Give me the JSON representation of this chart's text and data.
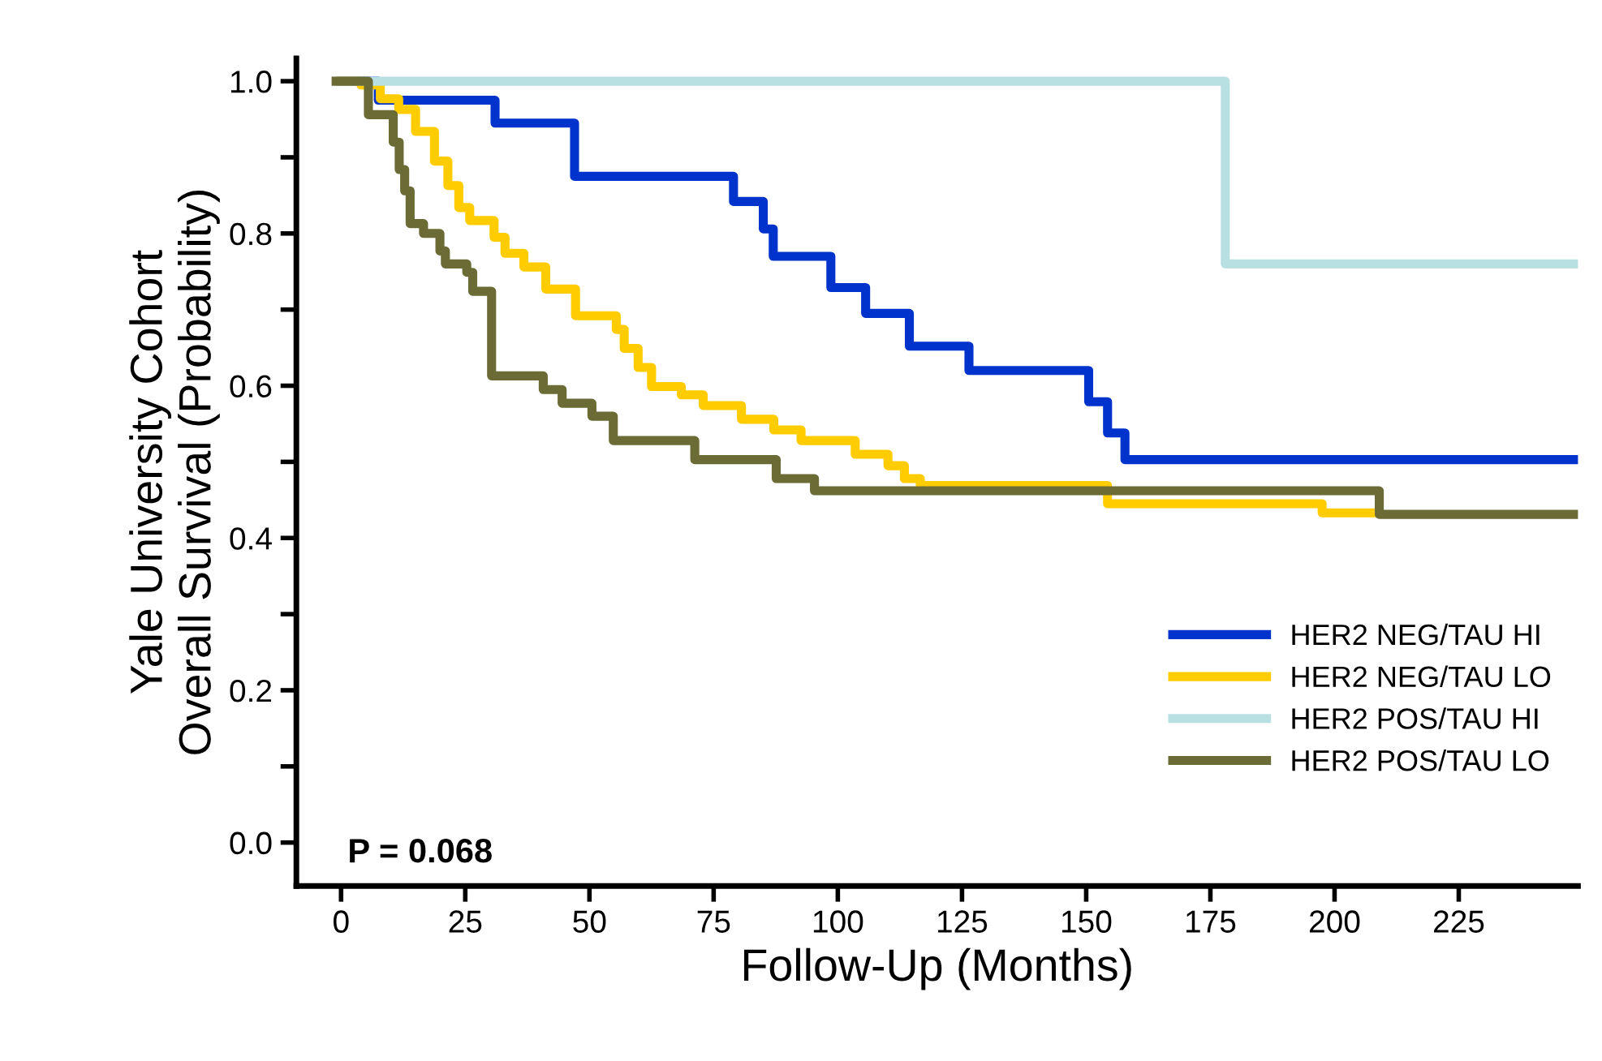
{
  "chart_data": {
    "type": "step",
    "xlabel": "Follow-Up (Months)",
    "ylabel": "Yale University Cohort\nOverall Survival (Probability)",
    "series": [
      {
        "name": "HER2 NEG/TAU HI",
        "color": "#0033cc",
        "x": [
          0,
          7.5,
          31,
          47,
          79,
          85,
          87,
          98.6,
          105.6,
          114.4,
          126.4,
          150.5,
          154.3,
          157.8,
          249
        ],
        "values": [
          1.0,
          0.975,
          0.945,
          0.875,
          0.842,
          0.806,
          0.77,
          0.729,
          0.695,
          0.652,
          0.62,
          0.579,
          0.538,
          0.503,
          0.503
        ]
      },
      {
        "name": "HER2 NEG/TAU LO",
        "color": "#ffcc00",
        "x": [
          0,
          4,
          7.9,
          11.6,
          15,
          18.8,
          21.5,
          23.7,
          25.9,
          30.8,
          33,
          36.8,
          41.2,
          47.2,
          55.4,
          57,
          59.8,
          62.5,
          68.5,
          72.9,
          80.6,
          87.1,
          92.6,
          103.5,
          110.1,
          113.4,
          116.6,
          154.3,
          197.5,
          208
        ],
        "values": [
          1.0,
          0.995,
          0.977,
          0.963,
          0.934,
          0.895,
          0.863,
          0.834,
          0.817,
          0.795,
          0.774,
          0.756,
          0.727,
          0.692,
          0.674,
          0.649,
          0.624,
          0.599,
          0.588,
          0.574,
          0.556,
          0.542,
          0.528,
          0.51,
          0.495,
          0.478,
          0.469,
          0.445,
          0.433,
          0.433
        ]
      },
      {
        "name": "HER2 POS/TAU HI",
        "color": "#b8e0e3",
        "x": [
          0,
          178,
          249
        ],
        "values": [
          1.0,
          0.76,
          0.76
        ]
      },
      {
        "name": "HER2 POS/TAU LO",
        "color": "#6b6b35",
        "x": [
          -1,
          5.5,
          10.5,
          11.7,
          12.8,
          13.9,
          16.6,
          19.9,
          21,
          25.3,
          26.5,
          30.3,
          40.7,
          44.5,
          50.5,
          54.8,
          71.2,
          87.6,
          95.3,
          209,
          249
        ],
        "values": [
          1.0,
          0.956,
          0.92,
          0.884,
          0.856,
          0.813,
          0.8,
          0.777,
          0.76,
          0.749,
          0.724,
          0.613,
          0.595,
          0.577,
          0.56,
          0.528,
          0.503,
          0.478,
          0.462,
          0.431,
          0.431
        ]
      }
    ],
    "xlim": [
      -9,
      249
    ],
    "ylim": [
      -0.057,
      1.03
    ],
    "xticks": [
      0,
      25,
      50,
      75,
      100,
      125,
      150,
      175,
      200,
      225
    ],
    "yticks": [
      {
        "value": 0,
        "label": "0.0"
      },
      {
        "value": 0.1,
        "label": null
      },
      {
        "value": 0.2,
        "label": "0.2"
      },
      {
        "value": 0.3,
        "label": null
      },
      {
        "value": 0.4,
        "label": "0.4"
      },
      {
        "value": 0.5,
        "label": null
      },
      {
        "value": 0.6,
        "label": "0.6"
      },
      {
        "value": 0.7,
        "label": null
      },
      {
        "value": 0.8,
        "label": "0.8"
      },
      {
        "value": 0.9,
        "label": null
      },
      {
        "value": 1.0,
        "label": "1.0"
      }
    ],
    "annotations": [
      "P = 0.068"
    ],
    "legend": "bottom right",
    "grid": false,
    "line_style": "solid",
    "marker": "none"
  }
}
